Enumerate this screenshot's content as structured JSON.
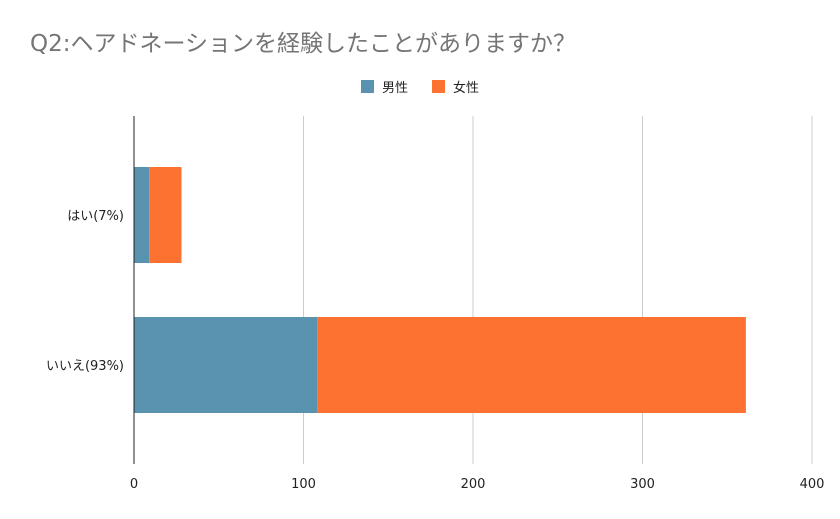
{
  "chart_data": {
    "type": "bar",
    "orientation": "horizontal",
    "stacked": true,
    "title": "Q2:ヘアドネーションを経験したことがありますか？",
    "categories": [
      "はい(7%)",
      "いいえ(93%)"
    ],
    "series": [
      {
        "name": "男性",
        "values": [
          9,
          108
        ],
        "color": "#5a93b0"
      },
      {
        "name": "女性",
        "values": [
          19,
          253
        ],
        "color": "#fe7231"
      }
    ],
    "xlim": [
      0,
      400
    ],
    "xticks": [
      "0",
      "100",
      "200",
      "300",
      "400"
    ],
    "grid": true,
    "legend_position": "top-center",
    "gridline_color": "#cccccc",
    "axis_color": "#222222"
  }
}
